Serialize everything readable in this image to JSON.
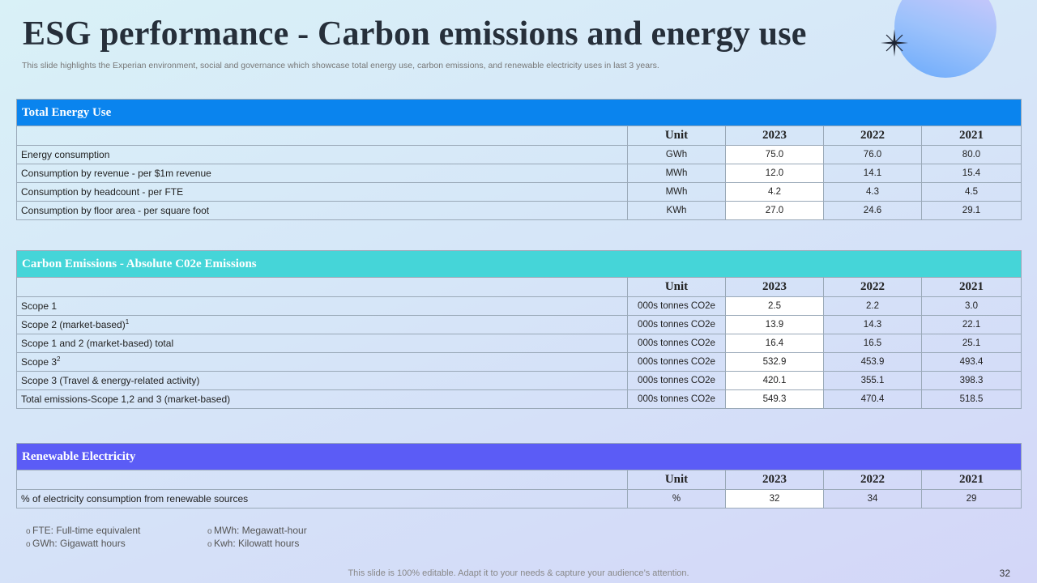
{
  "slide": {
    "title": "ESG performance - Carbon emissions and energy use",
    "subtitle": "This slide highlights the Experian environment, social and governance which showcase total energy use, carbon emissions, and renewable electricity uses in last 3 years.",
    "page_number": "32",
    "bottom_note": "This slide is 100% editable. Adapt it to your needs & capture your audience’s attention."
  },
  "colors": {
    "energy_header": "#0a84ee",
    "carbon_header": "#45d5d8",
    "renewable_header": "#5b5cf6",
    "row_bg_light": "#e4f1fb"
  },
  "columns": {
    "unit": "Unit",
    "y1": "2023",
    "y2": "2022",
    "y3": "2021"
  },
  "energy": {
    "heading": "Total Energy Use",
    "rows": [
      {
        "label": "Energy consumption",
        "sup": "",
        "unit": "GWh",
        "v2023": "75.0",
        "v2022": "76.0",
        "v2021": "80.0"
      },
      {
        "label": "Consumption  by revenue  - per $1m revenue",
        "sup": "",
        "unit": "MWh",
        "v2023": "12.0",
        "v2022": "14.1",
        "v2021": "15.4"
      },
      {
        "label": "Consumption  by headcount  - per FTE",
        "sup": "",
        "unit": "MWh",
        "v2023": "4.2",
        "v2022": "4.3",
        "v2021": "4.5"
      },
      {
        "label": "Consumption  by floor  area - per square foot",
        "sup": "",
        "unit": "KWh",
        "v2023": "27.0",
        "v2022": "24.6",
        "v2021": "29.1"
      }
    ]
  },
  "carbon": {
    "heading": "Carbon  Emissions  - Absolute  C02e Emissions",
    "rows": [
      {
        "label": "Scope 1",
        "sup": "",
        "unit": "000s tonnes CO2e",
        "v2023": "2.5",
        "v2022": "2.2",
        "v2021": "3.0"
      },
      {
        "label": "Scope 2 (market-based)",
        "sup": "1",
        "unit": "000s tonnes CO2e",
        "v2023": "13.9",
        "v2022": "14.3",
        "v2021": "22.1"
      },
      {
        "label": "Scope 1 and 2 (market-based)  total",
        "sup": "",
        "unit": "000s tonnes CO2e",
        "v2023": "16.4",
        "v2022": "16.5",
        "v2021": "25.1"
      },
      {
        "label": "Scope 3",
        "sup": "2",
        "unit": "000s tonnes CO2e",
        "v2023": "532.9",
        "v2022": "453.9",
        "v2021": "493.4"
      },
      {
        "label": "Scope 3 (Travel  & energy-related  activity)",
        "sup": "",
        "unit": "000s tonnes CO2e",
        "v2023": "420.1",
        "v2022": "355.1",
        "v2021": "398.3"
      },
      {
        "label": "Total emissions-Scope 1,2 and 3 (market-based)",
        "sup": "",
        "unit": "000s tonnes CO2e",
        "v2023": "549.3",
        "v2022": "470.4",
        "v2021": "518.5"
      }
    ]
  },
  "renewable": {
    "heading": "Renewable Electricity",
    "rows": [
      {
        "label": "% of electricity consumption from renewable  sources",
        "sup": "",
        "unit": "%",
        "v2023": "32",
        "v2022": "34",
        "v2021": "29"
      }
    ]
  },
  "footnotes": {
    "bullet": "o",
    "left": [
      "FTE: Full-time equivalent",
      "GWh: Gigawatt hours"
    ],
    "right": [
      "MWh:  Megawatt-hour",
      "Kwh: Kilowatt hours"
    ]
  },
  "icons": {
    "decoration": "sparkle-star-icon"
  }
}
